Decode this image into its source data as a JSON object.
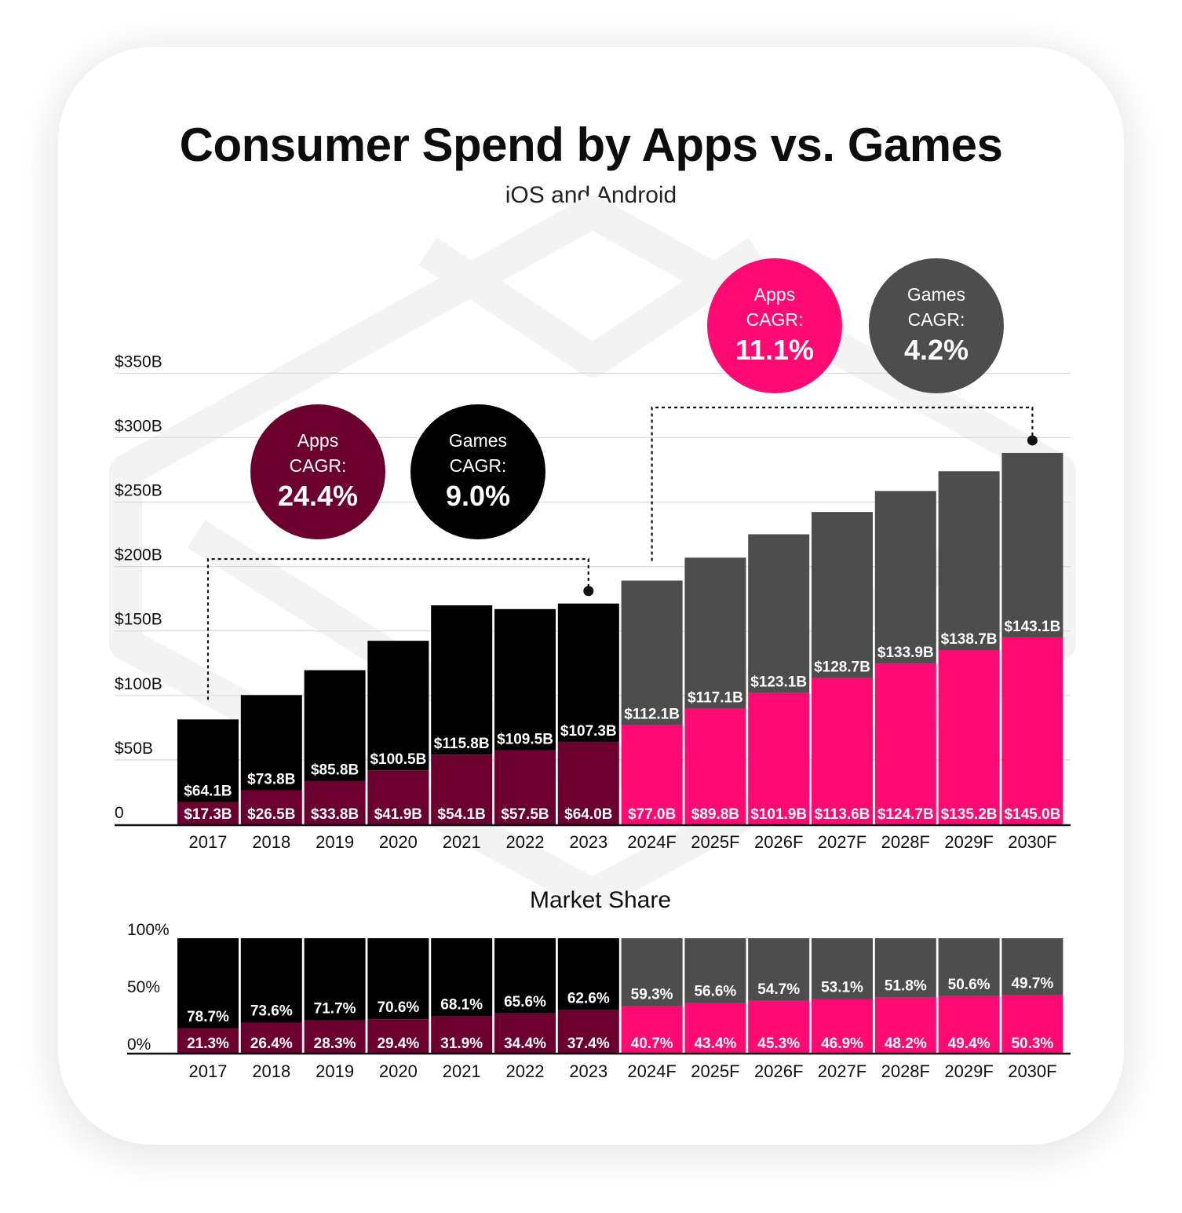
{
  "title": "Consumer Spend by Apps vs. Games",
  "subtitle": "iOS and Android",
  "cagr_historical": {
    "apps": {
      "line1": "Apps",
      "line2": "CAGR:",
      "value": "24.4%",
      "color": "#6b0030"
    },
    "games": {
      "line1": "Games",
      "line2": "CAGR:",
      "value": "9.0%",
      "color": "#000000"
    }
  },
  "cagr_forecast": {
    "apps": {
      "line1": "Apps",
      "line2": "CAGR:",
      "value": "11.1%",
      "color": "#ff0a73"
    },
    "games": {
      "line1": "Games",
      "line2": "CAGR:",
      "value": "4.2%",
      "color": "#4d4d4d"
    }
  },
  "colors": {
    "apps_historical": "#6b0030",
    "games_historical": "#000000",
    "apps_forecast": "#ff0a73",
    "games_forecast": "#4d4d4d"
  },
  "chart_data": [
    {
      "type": "bar",
      "stacked": true,
      "categories": [
        "2017",
        "2018",
        "2019",
        "2020",
        "2021",
        "2022",
        "2023",
        "2024F",
        "2025F",
        "2026F",
        "2027F",
        "2028F",
        "2029F",
        "2030F"
      ],
      "forecast_from": "2024F",
      "series": [
        {
          "name": "Apps",
          "values": [
            17.3,
            26.5,
            33.8,
            41.9,
            54.1,
            57.5,
            64.0,
            77.0,
            89.8,
            101.9,
            113.6,
            124.7,
            135.2,
            145.0
          ],
          "labels": [
            "$17.3B",
            "$26.5B",
            "$33.8B",
            "$41.9B",
            "$54.1B",
            "$57.5B",
            "$64.0B",
            "$77.0B",
            "$89.8B",
            "$101.9B",
            "$113.6B",
            "$124.7B",
            "$135.2B",
            "$145.0B"
          ]
        },
        {
          "name": "Games",
          "values": [
            64.1,
            73.8,
            85.8,
            100.5,
            115.8,
            109.5,
            107.3,
            112.1,
            117.1,
            123.1,
            128.7,
            133.9,
            138.7,
            143.1
          ],
          "labels": [
            "$64.1B",
            "$73.8B",
            "$85.8B",
            "$100.5B",
            "$115.8B",
            "$109.5B",
            "$107.3B",
            "$112.1B",
            "$117.1B",
            "$123.1B",
            "$128.7B",
            "$133.9B",
            "$138.7B",
            "$143.1B"
          ]
        }
      ],
      "ylim": [
        0,
        350
      ],
      "yticks": [
        0,
        50,
        100,
        150,
        200,
        250,
        300,
        350
      ],
      "ytick_labels": [
        "0",
        "$50B",
        "$100B",
        "$150B",
        "$200B",
        "$250B",
        "$300B",
        "$350B"
      ],
      "grid": true
    },
    {
      "type": "bar",
      "stacked": true,
      "title": "Market Share",
      "categories": [
        "2017",
        "2018",
        "2019",
        "2020",
        "2021",
        "2022",
        "2023",
        "2024F",
        "2025F",
        "2026F",
        "2027F",
        "2028F",
        "2029F",
        "2030F"
      ],
      "series": [
        {
          "name": "Apps",
          "values": [
            21.3,
            26.4,
            28.3,
            29.4,
            31.9,
            34.4,
            37.4,
            40.7,
            43.4,
            45.3,
            46.9,
            48.2,
            49.4,
            50.3
          ],
          "labels": [
            "21.3%",
            "26.4%",
            "28.3%",
            "29.4%",
            "31.9%",
            "34.4%",
            "37.4%",
            "40.7%",
            "43.4%",
            "45.3%",
            "46.9%",
            "48.2%",
            "49.4%",
            "50.3%"
          ]
        },
        {
          "name": "Games",
          "values": [
            78.7,
            73.6,
            71.7,
            70.6,
            68.1,
            65.6,
            62.6,
            59.3,
            56.6,
            54.7,
            53.1,
            51.8,
            50.6,
            49.7
          ],
          "labels": [
            "78.7%",
            "73.6%",
            "71.7%",
            "70.6%",
            "68.1%",
            "65.6%",
            "62.6%",
            "59.3%",
            "56.6%",
            "54.7%",
            "53.1%",
            "51.8%",
            "50.6%",
            "49.7%"
          ]
        }
      ],
      "ylim": [
        0,
        100
      ],
      "yticks": [
        0,
        50,
        100
      ],
      "ytick_labels": [
        "0%",
        "50%",
        "100%"
      ]
    }
  ]
}
